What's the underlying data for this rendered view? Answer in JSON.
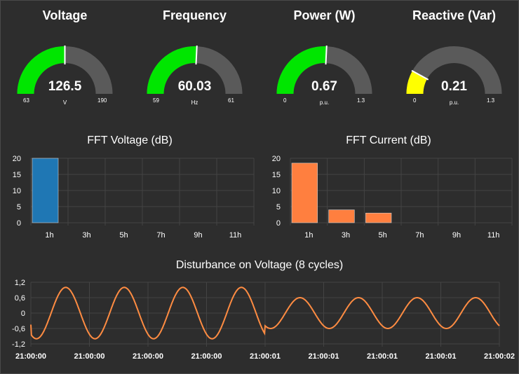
{
  "gauges": [
    {
      "title": "Voltage",
      "value": "126.5",
      "unit": "V",
      "min": "63",
      "max": "190",
      "level": 0.5,
      "color": "#00e600"
    },
    {
      "title": "Frequency",
      "value": "60.03",
      "unit": "Hz",
      "min": "59",
      "max": "61",
      "level": 0.515,
      "color": "#00e600"
    },
    {
      "title": "Power (W)",
      "value": "0.67",
      "unit": "p.u.",
      "min": "0",
      "max": "1.3",
      "level": 0.515,
      "color": "#00e600"
    },
    {
      "title": "Reactive (Var)",
      "value": "0.21",
      "unit": "p.u.",
      "min": "0",
      "max": "1.3",
      "level": 0.16,
      "color": "#ffff00"
    }
  ],
  "chart_data": [
    {
      "type": "bar",
      "title": "FFT Voltage (dB)",
      "categories": [
        "1h",
        "3h",
        "5h",
        "7h",
        "9h",
        "11h"
      ],
      "values": [
        20,
        0,
        0,
        0,
        0,
        0
      ],
      "yticks": [
        "20",
        "15",
        "10",
        "5",
        "0"
      ],
      "ylim": [
        0,
        20
      ],
      "color": "#1f77b4"
    },
    {
      "type": "bar",
      "title": "FFT Current (dB)",
      "categories": [
        "1h",
        "3h",
        "5h",
        "7h",
        "9h",
        "11h"
      ],
      "values": [
        18.5,
        4,
        3,
        0,
        0,
        0
      ],
      "yticks": [
        "20",
        "15",
        "10",
        "5",
        "0"
      ],
      "ylim": [
        0,
        20
      ],
      "color": "#ff7f3f"
    },
    {
      "type": "line",
      "title": "Disturbance on Voltage (8 cycles)",
      "yticks": [
        "1,2",
        "0,6",
        "0",
        "-0,6",
        "-1,2"
      ],
      "ylim": [
        -1.2,
        1.2
      ],
      "xticks": [
        "21:00:00",
        "21:00:00",
        "21:00:00",
        "21:00:00",
        "21:00:01",
        "21:00:01",
        "21:00:01",
        "21:00:01",
        "21:00:02"
      ],
      "cycles": 8,
      "amplitudes": [
        1.0,
        1.0,
        1.0,
        1.0,
        0.6,
        0.6,
        0.6,
        0.6
      ],
      "color": "#ff8c42"
    }
  ]
}
